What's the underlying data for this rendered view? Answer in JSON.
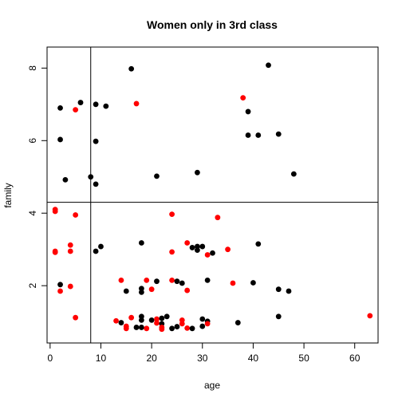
{
  "chart_data": {
    "type": "scatter",
    "title": "Women only in 3rd class",
    "xlabel": "age",
    "ylabel": "family",
    "xlim": [
      -0.6,
      64.6
    ],
    "ylim": [
      0.42,
      8.58
    ],
    "xticks": [
      0,
      10,
      20,
      30,
      40,
      50,
      60
    ],
    "yticks": [
      2,
      4,
      6,
      8
    ],
    "grid": false,
    "colors": {
      "black": "#000000",
      "red": "#ff0000"
    },
    "reference_lines": {
      "vertical_x": 8,
      "horizontal_y": 4.3
    },
    "points": [
      {
        "x": 2,
        "y": 6.9,
        "c": "black"
      },
      {
        "x": 6,
        "y": 7.05,
        "c": "black"
      },
      {
        "x": 9,
        "y": 7.0,
        "c": "black"
      },
      {
        "x": 11,
        "y": 6.95,
        "c": "black"
      },
      {
        "x": 16,
        "y": 7.98,
        "c": "black"
      },
      {
        "x": 43,
        "y": 8.08,
        "c": "black"
      },
      {
        "x": 39,
        "y": 6.8,
        "c": "black"
      },
      {
        "x": 39,
        "y": 6.15,
        "c": "black"
      },
      {
        "x": 41,
        "y": 6.15,
        "c": "black"
      },
      {
        "x": 45,
        "y": 6.18,
        "c": "black"
      },
      {
        "x": 2,
        "y": 6.03,
        "c": "black"
      },
      {
        "x": 9,
        "y": 5.98,
        "c": "black"
      },
      {
        "x": 3,
        "y": 4.92,
        "c": "black"
      },
      {
        "x": 8,
        "y": 5.0,
        "c": "black"
      },
      {
        "x": 9,
        "y": 4.8,
        "c": "black"
      },
      {
        "x": 21,
        "y": 5.02,
        "c": "black"
      },
      {
        "x": 29,
        "y": 5.12,
        "c": "black"
      },
      {
        "x": 48,
        "y": 5.08,
        "c": "black"
      },
      {
        "x": 5,
        "y": 6.85,
        "c": "red"
      },
      {
        "x": 17,
        "y": 7.02,
        "c": "red"
      },
      {
        "x": 38,
        "y": 7.18,
        "c": "red"
      },
      {
        "x": 1,
        "y": 4.1,
        "c": "red"
      },
      {
        "x": 1,
        "y": 4.05,
        "c": "red"
      },
      {
        "x": 5,
        "y": 3.95,
        "c": "red"
      },
      {
        "x": 24,
        "y": 3.97,
        "c": "red"
      },
      {
        "x": 33,
        "y": 3.88,
        "c": "red"
      },
      {
        "x": 1,
        "y": 2.95,
        "c": "red"
      },
      {
        "x": 1,
        "y": 2.92,
        "c": "red"
      },
      {
        "x": 4,
        "y": 3.12,
        "c": "red"
      },
      {
        "x": 4,
        "y": 2.95,
        "c": "red"
      },
      {
        "x": 9,
        "y": 2.95,
        "c": "black"
      },
      {
        "x": 10,
        "y": 3.08,
        "c": "black"
      },
      {
        "x": 18,
        "y": 3.18,
        "c": "black"
      },
      {
        "x": 24,
        "y": 2.93,
        "c": "red"
      },
      {
        "x": 27,
        "y": 3.18,
        "c": "red"
      },
      {
        "x": 28,
        "y": 3.05,
        "c": "black"
      },
      {
        "x": 29,
        "y": 3.08,
        "c": "black"
      },
      {
        "x": 29,
        "y": 2.98,
        "c": "black"
      },
      {
        "x": 30,
        "y": 3.08,
        "c": "black"
      },
      {
        "x": 31,
        "y": 2.85,
        "c": "red"
      },
      {
        "x": 32,
        "y": 2.9,
        "c": "black"
      },
      {
        "x": 35,
        "y": 3.0,
        "c": "red"
      },
      {
        "x": 41,
        "y": 3.15,
        "c": "black"
      },
      {
        "x": 2,
        "y": 2.03,
        "c": "black"
      },
      {
        "x": 2,
        "y": 1.85,
        "c": "red"
      },
      {
        "x": 4,
        "y": 1.98,
        "c": "red"
      },
      {
        "x": 14,
        "y": 2.15,
        "c": "red"
      },
      {
        "x": 15,
        "y": 1.85,
        "c": "black"
      },
      {
        "x": 18,
        "y": 1.92,
        "c": "black"
      },
      {
        "x": 18,
        "y": 1.82,
        "c": "black"
      },
      {
        "x": 19,
        "y": 2.15,
        "c": "red"
      },
      {
        "x": 20,
        "y": 1.9,
        "c": "red"
      },
      {
        "x": 21,
        "y": 2.12,
        "c": "black"
      },
      {
        "x": 24,
        "y": 2.15,
        "c": "red"
      },
      {
        "x": 25,
        "y": 2.12,
        "c": "black"
      },
      {
        "x": 26,
        "y": 2.07,
        "c": "black"
      },
      {
        "x": 27,
        "y": 1.87,
        "c": "red"
      },
      {
        "x": 31,
        "y": 2.15,
        "c": "black"
      },
      {
        "x": 36,
        "y": 2.07,
        "c": "red"
      },
      {
        "x": 40,
        "y": 2.08,
        "c": "black"
      },
      {
        "x": 45,
        "y": 1.9,
        "c": "black"
      },
      {
        "x": 47,
        "y": 1.85,
        "c": "black"
      },
      {
        "x": 5,
        "y": 1.12,
        "c": "red"
      },
      {
        "x": 13,
        "y": 1.03,
        "c": "red"
      },
      {
        "x": 14,
        "y": 0.98,
        "c": "black"
      },
      {
        "x": 15,
        "y": 0.88,
        "c": "red"
      },
      {
        "x": 15,
        "y": 0.82,
        "c": "red"
      },
      {
        "x": 16,
        "y": 1.12,
        "c": "red"
      },
      {
        "x": 17,
        "y": 0.85,
        "c": "black"
      },
      {
        "x": 18,
        "y": 1.15,
        "c": "black"
      },
      {
        "x": 18,
        "y": 1.05,
        "c": "black"
      },
      {
        "x": 18,
        "y": 0.85,
        "c": "black"
      },
      {
        "x": 19,
        "y": 0.82,
        "c": "red"
      },
      {
        "x": 20,
        "y": 1.05,
        "c": "black"
      },
      {
        "x": 21,
        "y": 1.08,
        "c": "red"
      },
      {
        "x": 21,
        "y": 0.97,
        "c": "red"
      },
      {
        "x": 22,
        "y": 1.1,
        "c": "black"
      },
      {
        "x": 22,
        "y": 0.95,
        "c": "black"
      },
      {
        "x": 22,
        "y": 0.85,
        "c": "red"
      },
      {
        "x": 22,
        "y": 0.8,
        "c": "red"
      },
      {
        "x": 23,
        "y": 1.15,
        "c": "black"
      },
      {
        "x": 24,
        "y": 0.82,
        "c": "black"
      },
      {
        "x": 25,
        "y": 0.87,
        "c": "black"
      },
      {
        "x": 26,
        "y": 1.05,
        "c": "red"
      },
      {
        "x": 26,
        "y": 0.95,
        "c": "red"
      },
      {
        "x": 27,
        "y": 0.83,
        "c": "red"
      },
      {
        "x": 28,
        "y": 0.82,
        "c": "black"
      },
      {
        "x": 30,
        "y": 1.08,
        "c": "black"
      },
      {
        "x": 30,
        "y": 0.88,
        "c": "black"
      },
      {
        "x": 31,
        "y": 1.02,
        "c": "black"
      },
      {
        "x": 31,
        "y": 0.95,
        "c": "red"
      },
      {
        "x": 37,
        "y": 0.98,
        "c": "black"
      },
      {
        "x": 45,
        "y": 1.15,
        "c": "black"
      },
      {
        "x": 63,
        "y": 1.17,
        "c": "red"
      }
    ]
  }
}
